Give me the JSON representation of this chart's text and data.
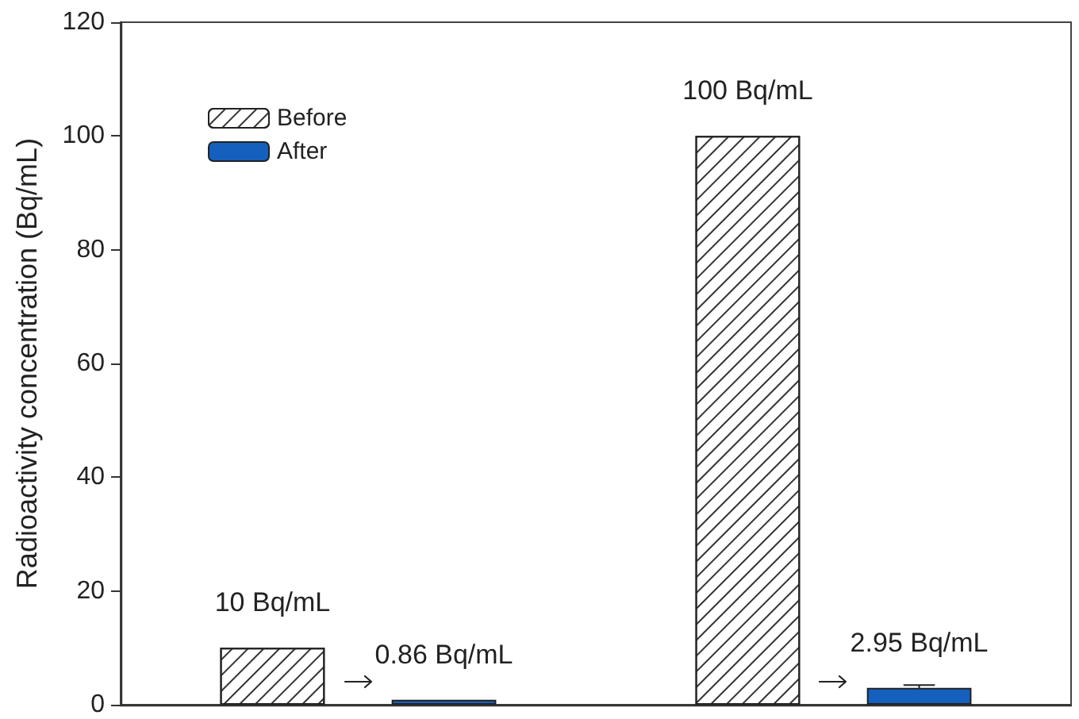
{
  "chart_data": {
    "type": "bar",
    "ylabel": "Radioactivity concentration (Bq/mL)",
    "categories": [
      null,
      null
    ],
    "series": [
      {
        "name": "Before",
        "color": "#ffffff",
        "values": [
          10,
          100
        ],
        "value_labels": [
          "10 Bq/mL",
          "100 Bq/mL"
        ]
      },
      {
        "name": "After",
        "color": "#1560bd",
        "values": [
          0.86,
          2.95
        ],
        "value_labels": [
          "0.86 Bq/mL",
          "2.95 Bq/mL"
        ],
        "errors": [
          null,
          0.5
        ]
      }
    ],
    "ylim": [
      0,
      120
    ],
    "yticks": [
      0,
      20,
      40,
      60,
      80,
      100,
      120
    ],
    "legend": "top left",
    "tick_labels": "y"
  }
}
